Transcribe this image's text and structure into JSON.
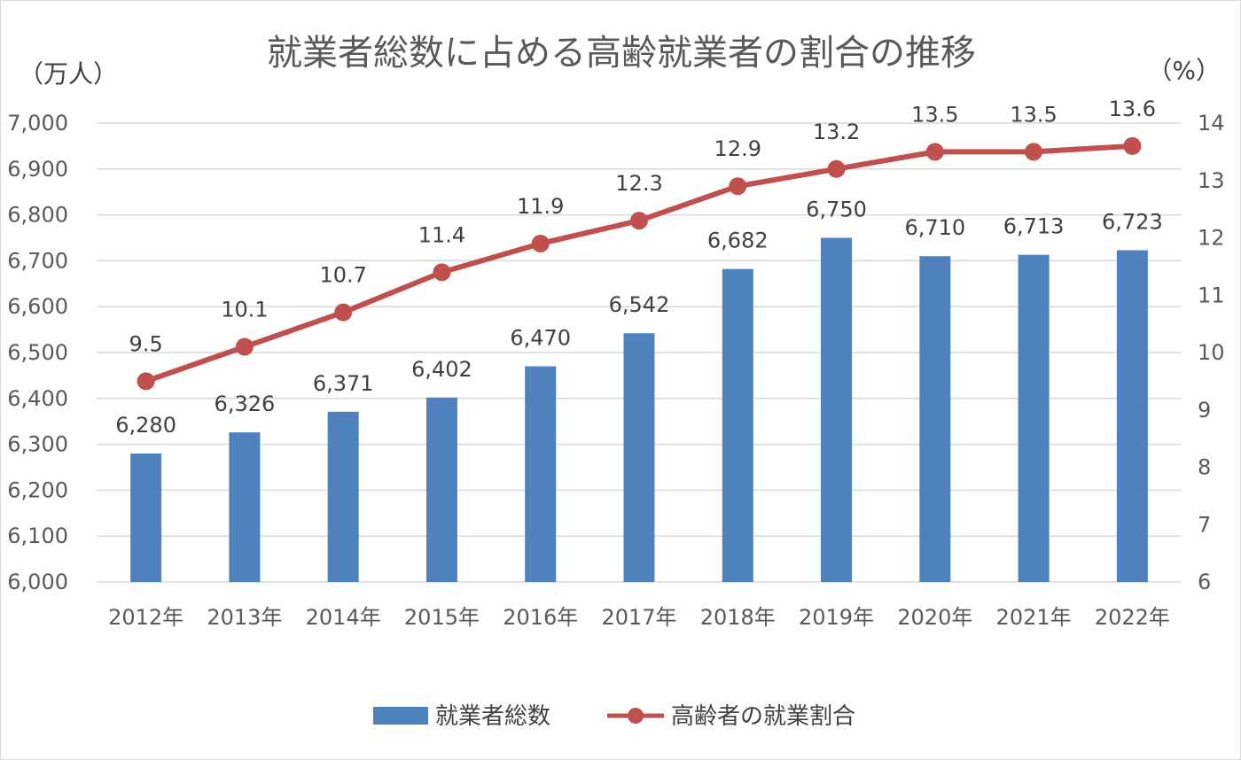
{
  "chart_data": {
    "type": "bar+line",
    "title": "就業者総数に占める高齢就業者の割合の推移",
    "categories": [
      "2012年",
      "2013年",
      "2014年",
      "2015年",
      "2016年",
      "2017年",
      "2018年",
      "2019年",
      "2020年",
      "2021年",
      "2022年"
    ],
    "series": [
      {
        "name": "就業者総数",
        "type": "bar",
        "axis": "left",
        "color": "#4f81bd",
        "values": [
          6280,
          6326,
          6371,
          6402,
          6470,
          6542,
          6682,
          6750,
          6710,
          6713,
          6723
        ],
        "labels": [
          "6,280",
          "6,326",
          "6,371",
          "6,402",
          "6,470",
          "6,542",
          "6,682",
          "6,750",
          "6,710",
          "6,713",
          "6,723"
        ]
      },
      {
        "name": "高齢者の就業割合",
        "type": "line",
        "axis": "right",
        "color": "#c0504d",
        "values": [
          9.5,
          10.1,
          10.7,
          11.4,
          11.9,
          12.3,
          12.9,
          13.2,
          13.5,
          13.5,
          13.6
        ],
        "labels": [
          "9.5",
          "10.1",
          "10.7",
          "11.4",
          "11.9",
          "12.3",
          "12.9",
          "13.2",
          "13.5",
          "13.5",
          "13.6"
        ]
      }
    ],
    "y_left": {
      "unit": "（万人）",
      "range": [
        6000,
        7000
      ],
      "ticks": [
        6000,
        6100,
        6200,
        6300,
        6400,
        6500,
        6600,
        6700,
        6800,
        6900,
        7000
      ],
      "tick_labels": [
        "6,000",
        "6,100",
        "6,200",
        "6,300",
        "6,400",
        "6,500",
        "6,600",
        "6,700",
        "6,800",
        "6,900",
        "7,000"
      ]
    },
    "y_right": {
      "unit": "（%）",
      "range": [
        6,
        14
      ],
      "ticks": [
        6,
        7,
        8,
        9,
        10,
        11,
        12,
        13,
        14
      ],
      "tick_labels": [
        "6",
        "7",
        "8",
        "9",
        "10",
        "11",
        "12",
        "13",
        "14"
      ]
    },
    "grid": true,
    "legend_position": "bottom"
  }
}
